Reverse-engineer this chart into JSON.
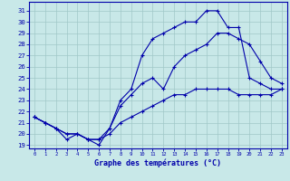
{
  "background_color": "#c8e8e8",
  "grid_color": "#a0c8c8",
  "line_color": "#0000aa",
  "xlim": [
    -0.5,
    23.5
  ],
  "ylim": [
    18.7,
    31.8
  ],
  "yticks": [
    19,
    20,
    21,
    22,
    23,
    24,
    25,
    26,
    27,
    28,
    29,
    30,
    31
  ],
  "xticks": [
    0,
    1,
    2,
    3,
    4,
    5,
    6,
    7,
    8,
    9,
    10,
    11,
    12,
    13,
    14,
    15,
    16,
    17,
    18,
    19,
    20,
    21,
    22,
    23
  ],
  "xlabel": "Graphe des températures (°C)",
  "series": [
    [
      21.5,
      21.0,
      20.5,
      19.5,
      20.0,
      19.5,
      19.0,
      20.5,
      23.0,
      24.0,
      27.0,
      28.5,
      29.0,
      29.5,
      30.0,
      30.0,
      31.0,
      31.0,
      29.5,
      29.5,
      25.0,
      24.5,
      24.0,
      24.0
    ],
    [
      21.5,
      21.0,
      20.5,
      20.0,
      20.0,
      19.5,
      19.5,
      20.5,
      22.5,
      23.5,
      24.5,
      25.0,
      24.0,
      26.0,
      27.0,
      27.5,
      28.0,
      29.0,
      29.0,
      28.5,
      28.0,
      26.5,
      25.0,
      24.5
    ],
    [
      21.5,
      21.0,
      20.5,
      20.0,
      20.0,
      19.5,
      19.5,
      20.0,
      21.0,
      21.5,
      22.0,
      22.5,
      23.0,
      23.5,
      23.5,
      24.0,
      24.0,
      24.0,
      24.0,
      23.5,
      23.5,
      23.5,
      23.5,
      24.0
    ]
  ]
}
